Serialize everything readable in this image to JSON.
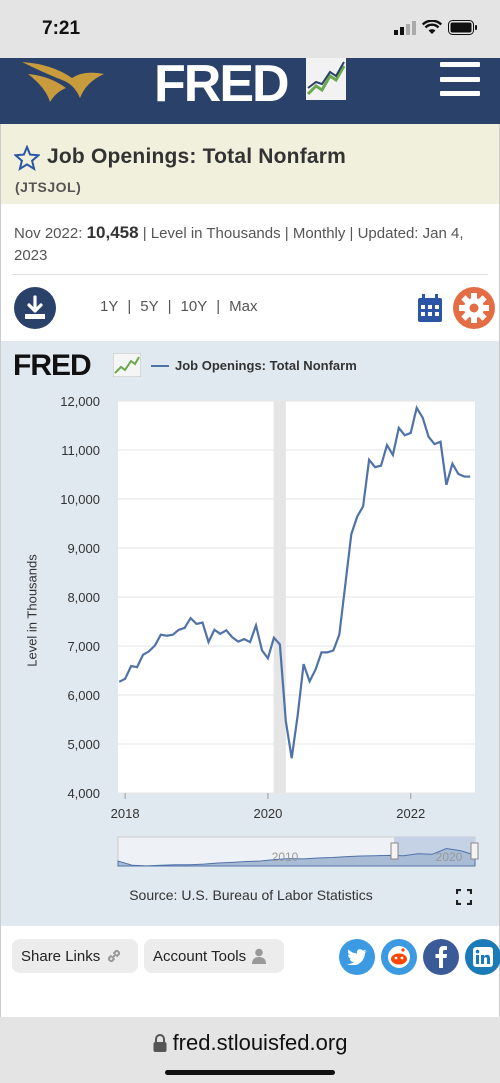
{
  "status": {
    "time": "7:21"
  },
  "header": {
    "brand": "FRED",
    "menu_icon": "hamburger-icon"
  },
  "series": {
    "title": "Job Openings: Total Nonfarm",
    "id": "(JTSJOL)",
    "latest_label": "Nov 2022:",
    "latest_value": "10,458",
    "details": "| Level in Thousands | Monthly | Updated: Jan 4, 2023"
  },
  "controls": {
    "ranges": [
      "1Y",
      "5Y",
      "10Y",
      "Max"
    ],
    "separator": "|"
  },
  "graph": {
    "logo": "FRED",
    "legend": "Job Openings: Total Nonfarm",
    "ylabel": "Level in Thousands",
    "source": "Source: U.S. Bureau of Labor Statistics",
    "navigator_labels": [
      "2010",
      "2020"
    ]
  },
  "chart_data": {
    "type": "line",
    "title": "",
    "ylabel": "Level in Thousands",
    "ylim": [
      4000,
      12000
    ],
    "yticks": [
      4000,
      5000,
      6000,
      7000,
      8000,
      9000,
      10000,
      11000,
      12000
    ],
    "ytick_labels": [
      "4,000",
      "5,000",
      "6,000",
      "7,000",
      "8,000",
      "9,000",
      "10,000",
      "11,000",
      "12,000"
    ],
    "xticks": [
      2018,
      2020,
      2022
    ],
    "xtick_labels": [
      "2018",
      "2020",
      "2022"
    ],
    "xlim": [
      2017.9,
      2022.9
    ],
    "recession": [
      2020.08,
      2020.25
    ],
    "grid": true,
    "color": "#4f72a8",
    "series": [
      {
        "name": "Job Openings: Total Nonfarm",
        "x": [
          2017.917,
          2018.0,
          2018.083,
          2018.167,
          2018.25,
          2018.333,
          2018.417,
          2018.5,
          2018.583,
          2018.667,
          2018.75,
          2018.833,
          2018.917,
          2019.0,
          2019.083,
          2019.167,
          2019.25,
          2019.333,
          2019.417,
          2019.5,
          2019.583,
          2019.667,
          2019.75,
          2019.833,
          2019.917,
          2020.0,
          2020.083,
          2020.167,
          2020.25,
          2020.333,
          2020.417,
          2020.5,
          2020.583,
          2020.667,
          2020.75,
          2020.833,
          2020.917,
          2021.0,
          2021.083,
          2021.167,
          2021.25,
          2021.333,
          2021.417,
          2021.5,
          2021.583,
          2021.667,
          2021.75,
          2021.833,
          2021.917,
          2022.0,
          2022.083,
          2022.167,
          2022.25,
          2022.333,
          2022.417,
          2022.5,
          2022.583,
          2022.667,
          2022.75,
          2022.833
        ],
        "y": [
          6270,
          6330,
          6590,
          6570,
          6820,
          6890,
          7010,
          7230,
          7210,
          7230,
          7330,
          7370,
          7570,
          7450,
          7480,
          7080,
          7330,
          7250,
          7320,
          7180,
          7090,
          7140,
          7080,
          7420,
          6910,
          6750,
          7170,
          7030,
          5470,
          4710,
          5590,
          6630,
          6280,
          6520,
          6870,
          6870,
          6910,
          7230,
          8250,
          9280,
          9640,
          9850,
          10800,
          10650,
          10680,
          11100,
          10900,
          11450,
          11300,
          11350,
          11860,
          11660,
          11270,
          11120,
          11170,
          10290,
          10720,
          10510,
          10460,
          10458
        ]
      }
    ],
    "navigator_range": [
      2017.9,
      2022.9
    ]
  },
  "bottom": {
    "share_label": "Share Links",
    "account_label": "Account Tools",
    "social": [
      "twitter-icon",
      "reddit-icon",
      "facebook-icon",
      "linkedin-icon"
    ]
  },
  "browser": {
    "url": "fred.stlouisfed.org"
  }
}
